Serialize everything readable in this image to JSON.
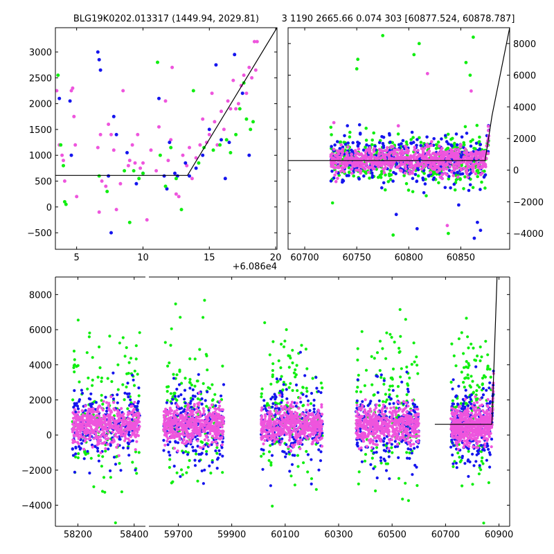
{
  "figure": {
    "title_left": "BLG19K0202.013317 (1449.94, 2029.81)",
    "title_right": "3 1190 2665.66 0.074 303 [60877.524, 60878.787]",
    "series_colors": {
      "magenta": "#ee55dd",
      "blue": "#1515ee",
      "green": "#11ee11"
    },
    "model_color": "#000000"
  },
  "chart_data": [
    {
      "id": "zoom",
      "type": "scatter",
      "x_offset_label": "+6.086e4",
      "xlim": [
        3.4,
        20.1
      ],
      "ylim": [
        -820,
        3470
      ],
      "xticks": [
        5,
        10,
        15,
        20
      ],
      "yticks": [
        -500,
        0,
        500,
        1000,
        1500,
        2000,
        2500,
        3000
      ],
      "model": {
        "x": [
          3.4,
          13.35,
          20.1
        ],
        "y": [
          610,
          610,
          3470
        ]
      },
      "series": [
        {
          "color": "magenta",
          "points": [
            [
              3.5,
              2250
            ],
            [
              3.7,
              1200
            ],
            [
              3.9,
              1000
            ],
            [
              4.0,
              900
            ],
            [
              4.1,
              500
            ],
            [
              4.6,
              2250
            ],
            [
              4.7,
              2300
            ],
            [
              4.8,
              1750
            ],
            [
              4.9,
              1200
            ],
            [
              5.0,
              200
            ],
            [
              6.6,
              1150
            ],
            [
              6.7,
              -100
            ],
            [
              6.8,
              1400
            ],
            [
              6.9,
              500
            ],
            [
              7.2,
              400
            ],
            [
              7.4,
              1600
            ],
            [
              7.6,
              1400
            ],
            [
              7.8,
              1100
            ],
            [
              8.0,
              -50
            ],
            [
              8.3,
              450
            ],
            [
              8.5,
              2250
            ],
            [
              8.9,
              800
            ],
            [
              9.0,
              900
            ],
            [
              9.2,
              1200
            ],
            [
              9.4,
              850
            ],
            [
              9.6,
              1400
            ],
            [
              9.8,
              750
            ],
            [
              10.0,
              850
            ],
            [
              10.3,
              -250
            ],
            [
              10.6,
              1100
            ],
            [
              11.0,
              700
            ],
            [
              11.2,
              1550
            ],
            [
              11.7,
              2050
            ],
            [
              11.9,
              900
            ],
            [
              12.1,
              1300
            ],
            [
              12.2,
              2700
            ],
            [
              12.5,
              250
            ],
            [
              12.7,
              200
            ],
            [
              13.0,
              1000
            ],
            [
              13.3,
              800
            ],
            [
              13.5,
              1150
            ],
            [
              13.7,
              550
            ],
            [
              14.0,
              950
            ],
            [
              14.3,
              1200
            ],
            [
              14.5,
              1700
            ],
            [
              14.8,
              1250
            ],
            [
              15.0,
              1400
            ],
            [
              15.2,
              2200
            ],
            [
              15.4,
              1650
            ],
            [
              15.6,
              1200
            ],
            [
              15.9,
              1850
            ],
            [
              16.1,
              1500
            ],
            [
              16.4,
              2050
            ],
            [
              16.6,
              1900
            ],
            [
              16.8,
              2450
            ],
            [
              17.0,
              1900
            ],
            [
              17.2,
              2000
            ],
            [
              17.4,
              2350
            ],
            [
              17.6,
              2550
            ],
            [
              17.8,
              2200
            ],
            [
              18.0,
              2700
            ],
            [
              18.2,
              2500
            ],
            [
              18.4,
              3200
            ],
            [
              18.5,
              2650
            ],
            [
              18.6,
              3200
            ]
          ]
        },
        {
          "color": "blue",
          "points": [
            [
              3.7,
              2100
            ],
            [
              4.5,
              2050
            ],
            [
              4.6,
              1000
            ],
            [
              6.6,
              3000
            ],
            [
              6.7,
              2850
            ],
            [
              6.8,
              2650
            ],
            [
              7.4,
              600
            ],
            [
              7.6,
              -500
            ],
            [
              7.8,
              1750
            ],
            [
              8.0,
              1400
            ],
            [
              8.8,
              1050
            ],
            [
              9.5,
              450
            ],
            [
              10.0,
              650
            ],
            [
              11.2,
              2100
            ],
            [
              11.6,
              600
            ],
            [
              11.8,
              350
            ],
            [
              12.0,
              1250
            ],
            [
              12.4,
              650
            ],
            [
              12.6,
              600
            ],
            [
              13.2,
              850
            ],
            [
              13.5,
              600
            ],
            [
              14.0,
              750
            ],
            [
              14.5,
              1000
            ],
            [
              15.0,
              1500
            ],
            [
              15.5,
              2750
            ],
            [
              15.9,
              1300
            ],
            [
              16.2,
              550
            ],
            [
              16.5,
              1250
            ],
            [
              16.9,
              2950
            ],
            [
              17.5,
              2200
            ],
            [
              18.0,
              1000
            ]
          ]
        },
        {
          "color": "green",
          "points": [
            [
              3.6,
              2550
            ],
            [
              3.8,
              1200
            ],
            [
              4.0,
              800
            ],
            [
              4.1,
              100
            ],
            [
              4.2,
              50
            ],
            [
              6.7,
              600
            ],
            [
              7.3,
              300
            ],
            [
              8.6,
              700
            ],
            [
              9.0,
              -300
            ],
            [
              9.3,
              700
            ],
            [
              9.7,
              550
            ],
            [
              10.0,
              650
            ],
            [
              11.1,
              2800
            ],
            [
              11.3,
              1000
            ],
            [
              11.7,
              400
            ],
            [
              12.1,
              1150
            ],
            [
              12.5,
              550
            ],
            [
              12.9,
              -50
            ],
            [
              13.8,
              2250
            ],
            [
              14.2,
              850
            ],
            [
              14.6,
              1150
            ],
            [
              15.3,
              1100
            ],
            [
              15.8,
              1200
            ],
            [
              16.3,
              1300
            ],
            [
              16.6,
              1050
            ],
            [
              17.0,
              1400
            ],
            [
              17.3,
              1900
            ],
            [
              17.6,
              2400
            ],
            [
              17.8,
              1700
            ],
            [
              18.1,
              1500
            ],
            [
              18.3,
              1650
            ]
          ]
        }
      ]
    },
    {
      "id": "season",
      "type": "scatter",
      "xlim": [
        60684,
        60897
      ],
      "ylim": [
        -5000,
        9000
      ],
      "xticks": [
        60700,
        60750,
        60800,
        60850
      ],
      "yticks": [
        -4000,
        -2000,
        0,
        2000,
        4000,
        6000,
        8000
      ],
      "model": {
        "x": [
          60684,
          60873.35,
          60880.1,
          60897
        ],
        "y": [
          610,
          610,
          3470,
          9000
        ]
      },
      "series": [
        {
          "color": "green",
          "outliers": [
            [
              60750,
              6400
            ],
            [
              60751,
              7000
            ],
            [
              60775,
              8500
            ],
            [
              60785,
              -4100
            ],
            [
              60805,
              7300
            ],
            [
              60810,
              8000
            ],
            [
              60838,
              -4000
            ],
            [
              60855,
              6800
            ],
            [
              60859,
              6000
            ],
            [
              60862,
              8400
            ]
          ]
        },
        {
          "color": "magenta",
          "outliers": [
            [
              60728,
              3000
            ],
            [
              60735,
              1600
            ],
            [
              60790,
              2800
            ],
            [
              60818,
              6100
            ],
            [
              60822,
              1800
            ],
            [
              60837,
              -3500
            ],
            [
              60850,
              1600
            ],
            [
              60860,
              5000
            ]
          ]
        },
        {
          "color": "blue",
          "outliers": [
            [
              60788,
              -2800
            ],
            [
              60808,
              -3700
            ],
            [
              60848,
              -2200
            ],
            [
              60863,
              -4300
            ],
            [
              60866,
              -3300
            ],
            [
              60869,
              -3800
            ]
          ]
        }
      ]
    },
    {
      "id": "all",
      "type": "scatter",
      "ylim": [
        -5200,
        9000
      ],
      "yticks": [
        -4000,
        -2000,
        0,
        2000,
        4000,
        6000,
        8000
      ],
      "segments": [
        {
          "xlim": [
            58120,
            58440
          ],
          "xticks": [
            58200,
            58400
          ]
        },
        {
          "xlim": [
            59590,
            60940
          ],
          "xticks": [
            59700,
            59900,
            60100,
            60300,
            60500,
            60700,
            60900
          ]
        }
      ],
      "seasons": [
        {
          "start": 58180,
          "end": 58420
        },
        {
          "start": 59645,
          "end": 59870
        },
        {
          "start": 60010,
          "end": 60240
        },
        {
          "start": 60365,
          "end": 60600
        },
        {
          "start": 60720,
          "end": 60880
        }
      ],
      "model": {
        "x": [
          60660,
          60873.35,
          60880.1,
          60895
        ],
        "y": [
          610,
          610,
          3470,
          10000
        ]
      },
      "series_colors": [
        "magenta",
        "blue",
        "green"
      ]
    }
  ]
}
